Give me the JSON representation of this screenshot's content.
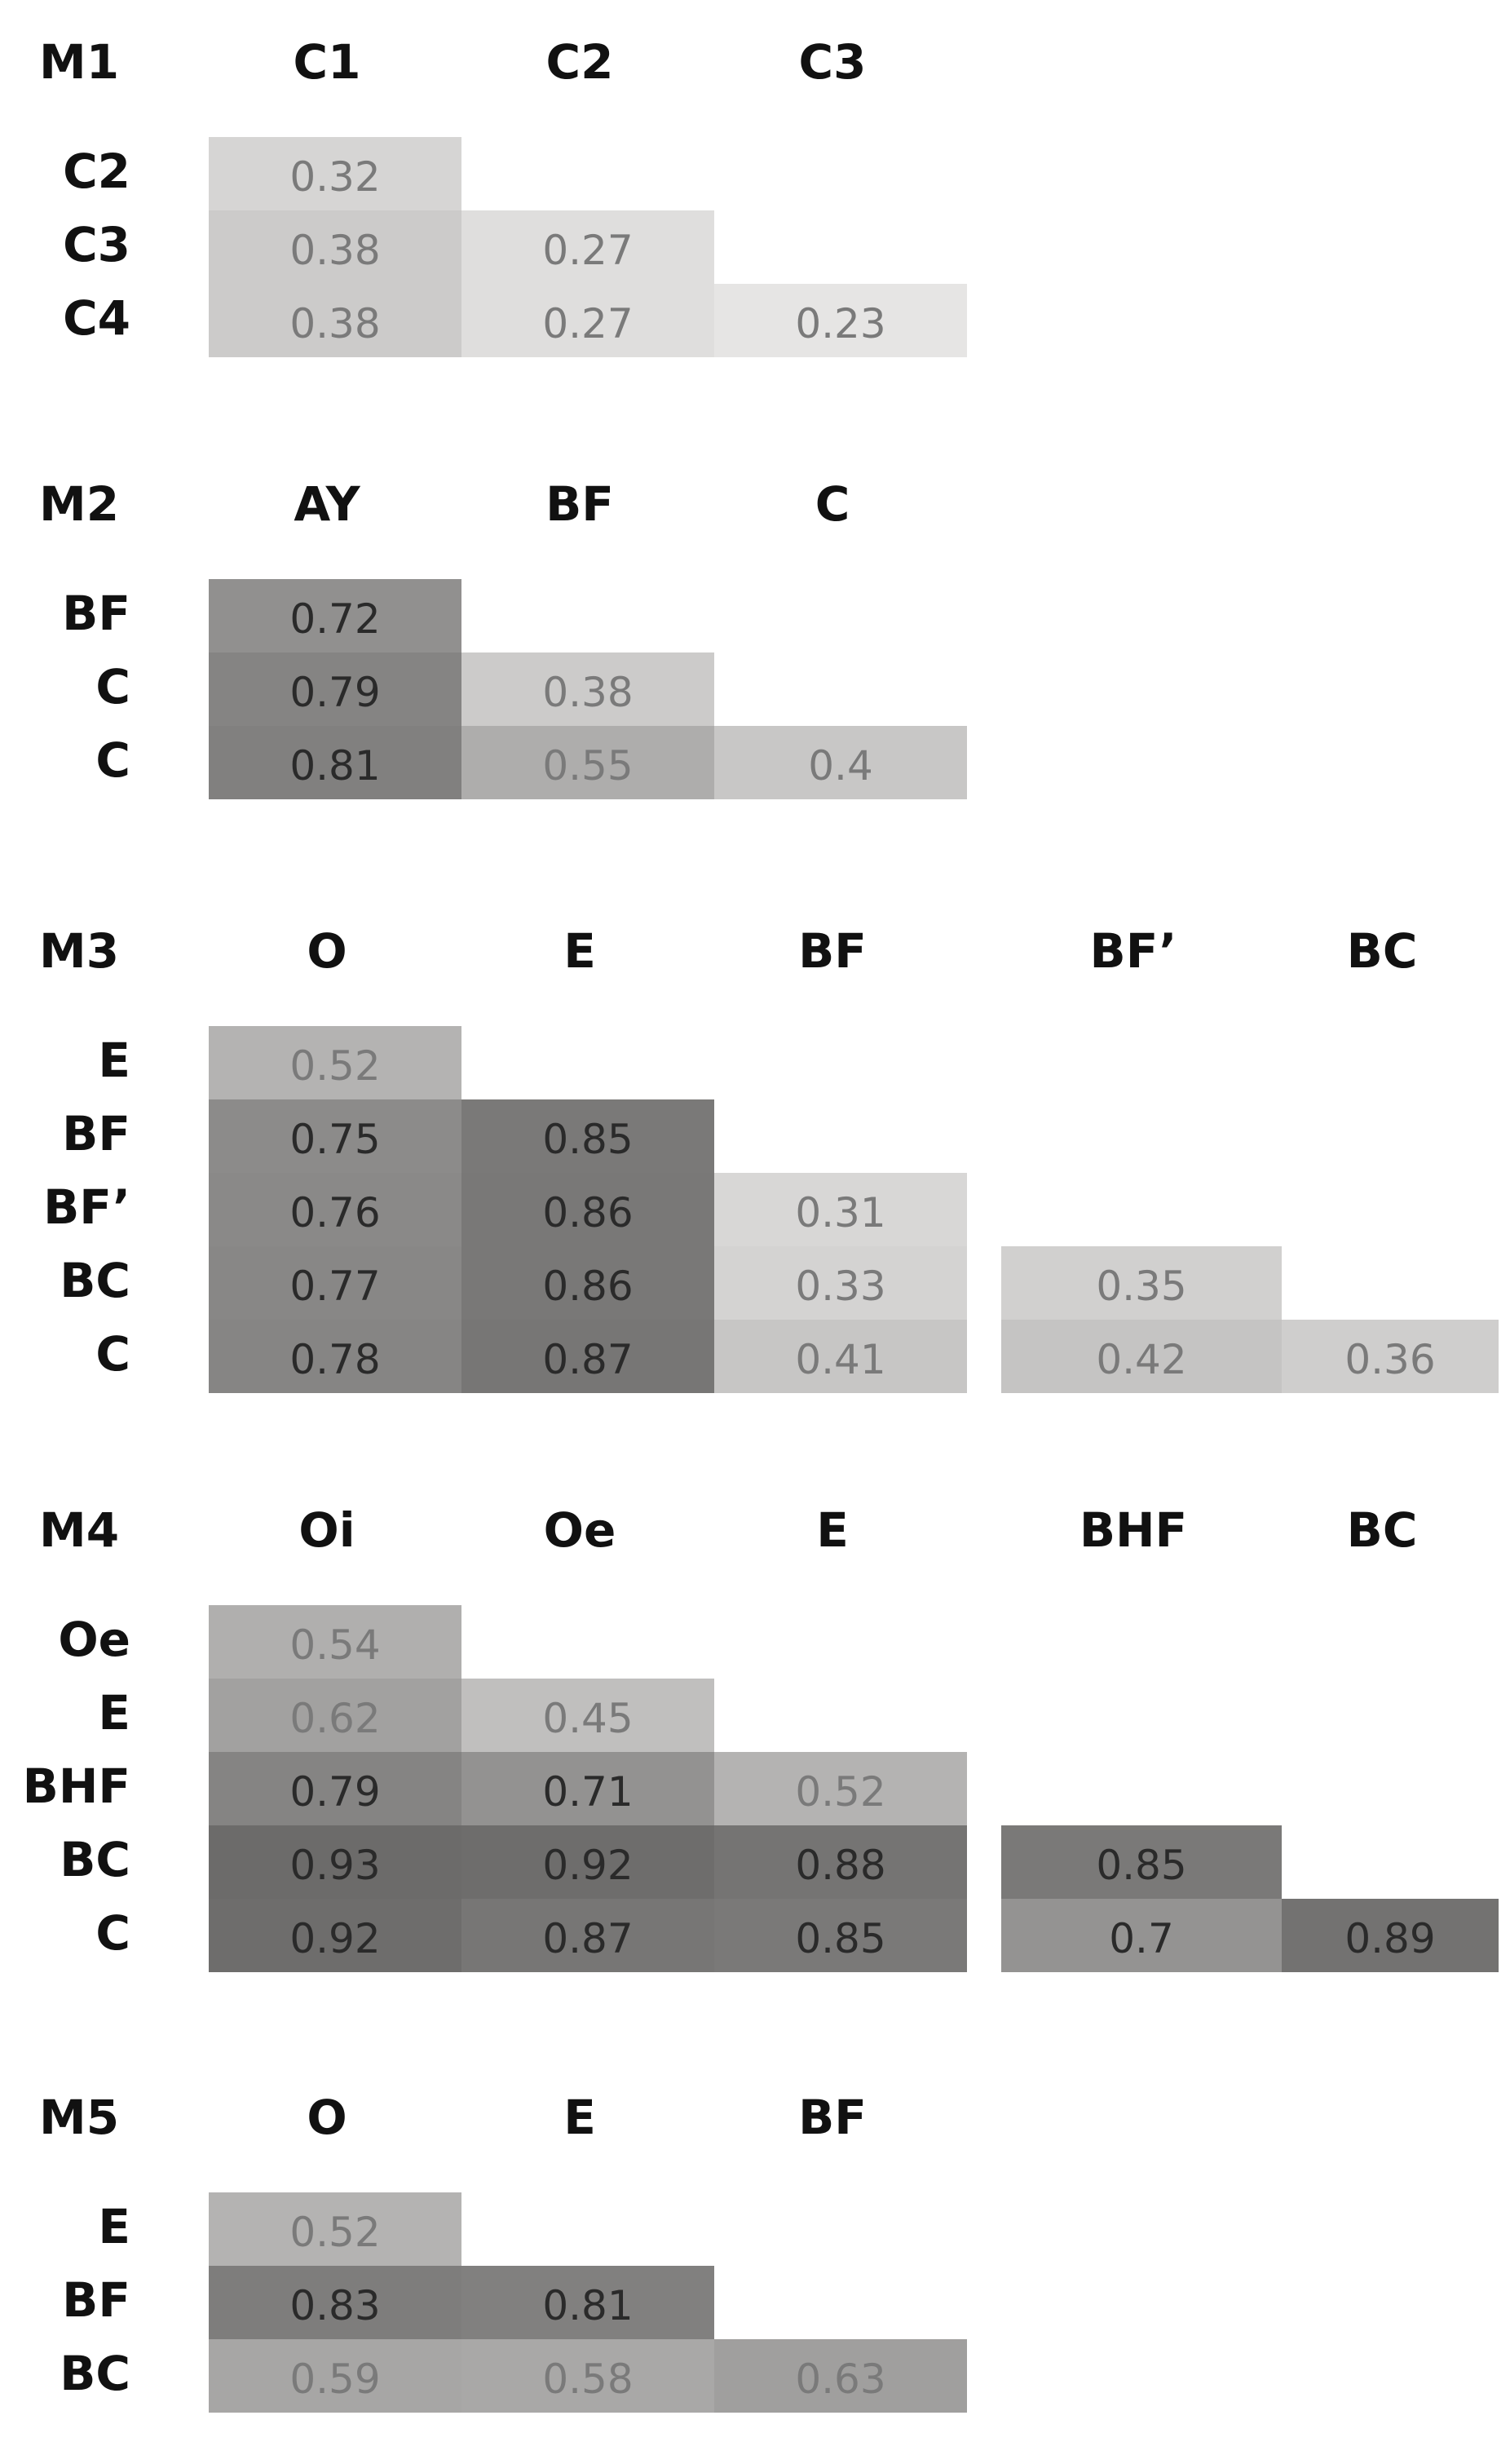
{
  "chart_data": [
    {
      "type": "heatmap",
      "title": "M1",
      "columns": [
        "C1",
        "C2",
        "C3"
      ],
      "rows": [
        {
          "label": "C2",
          "values": [
            "0.32"
          ]
        },
        {
          "label": "C3",
          "values": [
            "0.38",
            "0.27"
          ]
        },
        {
          "label": "C4",
          "values": [
            "0.38",
            "0.27",
            "0.23"
          ]
        }
      ]
    },
    {
      "type": "heatmap",
      "title": "M2",
      "columns": [
        "AY",
        "BF",
        "C"
      ],
      "rows": [
        {
          "label": "BF",
          "values": [
            "0.72"
          ]
        },
        {
          "label": "C",
          "values": [
            "0.79",
            "0.38"
          ]
        },
        {
          "label": "C",
          "values": [
            "0.81",
            "0.55",
            "0.4"
          ]
        }
      ]
    },
    {
      "type": "heatmap",
      "title": "M3",
      "columns": [
        "O",
        "E",
        "BF",
        "BF’",
        "BC"
      ],
      "rows": [
        {
          "label": "E",
          "values": [
            "0.52"
          ]
        },
        {
          "label": "BF",
          "values": [
            "0.75",
            "0.85"
          ]
        },
        {
          "label": "BF’",
          "values": [
            "0.76",
            "0.86",
            "0.31"
          ]
        },
        {
          "label": "BC",
          "values": [
            "0.77",
            "0.86",
            "0.33",
            "0.35"
          ]
        },
        {
          "label": "C",
          "values": [
            "0.78",
            "0.87",
            "0.41",
            "0.42",
            "0.36"
          ]
        }
      ]
    },
    {
      "type": "heatmap",
      "title": "M4",
      "columns": [
        "Oi",
        "Oe",
        "E",
        "BHF",
        "BC"
      ],
      "rows": [
        {
          "label": "Oe",
          "values": [
            "0.54"
          ]
        },
        {
          "label": "E",
          "values": [
            "0.62",
            "0.45"
          ]
        },
        {
          "label": "BHF",
          "values": [
            "0.79",
            "0.71",
            "0.52"
          ]
        },
        {
          "label": "BC",
          "values": [
            "0.93",
            "0.92",
            "0.88",
            "0.85"
          ]
        },
        {
          "label": "C",
          "values": [
            "0.92",
            "0.87",
            "0.85",
            "0.7",
            "0.89"
          ]
        }
      ]
    },
    {
      "type": "heatmap",
      "title": "M5",
      "columns": [
        "O",
        "E",
        "BF"
      ],
      "rows": [
        {
          "label": "E",
          "values": [
            "0.52"
          ]
        },
        {
          "label": "BF",
          "values": [
            "0.83",
            "0.81"
          ]
        },
        {
          "label": "BC",
          "values": [
            "0.59",
            "0.58",
            "0.63"
          ]
        }
      ]
    }
  ]
}
